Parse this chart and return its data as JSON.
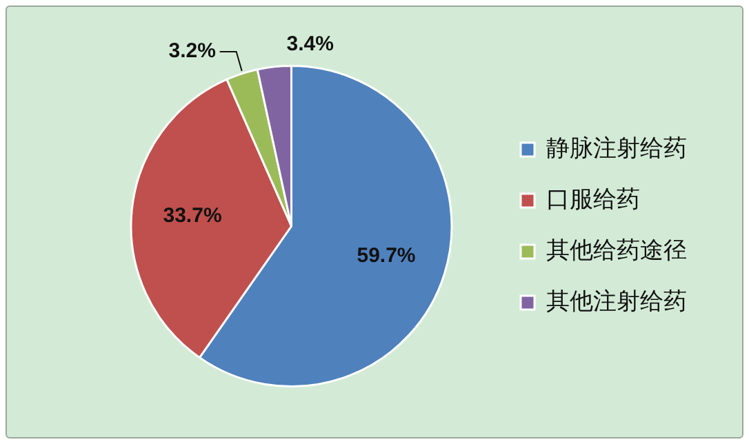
{
  "chart_data": {
    "type": "pie",
    "categories": [
      "静脉注射给药",
      "口服给药",
      "其他给药途径",
      "其他注射给药"
    ],
    "values": [
      59.7,
      33.7,
      3.2,
      3.4
    ],
    "colors": [
      "#4f81bd",
      "#c0504d",
      "#9bbb59",
      "#8064a2"
    ],
    "value_labels": [
      "59.7%",
      "33.7%",
      "3.2%",
      "3.4%"
    ],
    "legend": "right"
  }
}
